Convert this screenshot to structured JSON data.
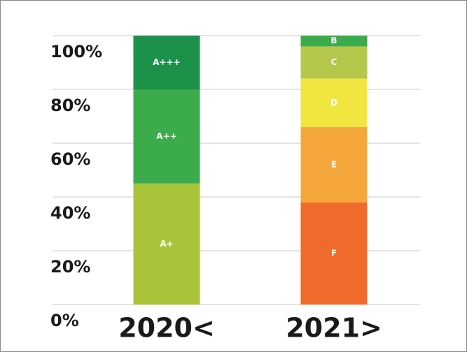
{
  "chart_data": {
    "type": "stacked-bar",
    "categories": [
      "2020<",
      "2021>"
    ],
    "series": [
      {
        "name": "A+",
        "color": "#a9c43b",
        "values": [
          45,
          null
        ]
      },
      {
        "name": "A++",
        "color": "#3cab4b",
        "values": [
          35,
          null
        ]
      },
      {
        "name": "A+++",
        "color": "#1b9149",
        "values": [
          20,
          null
        ]
      },
      {
        "name": "F",
        "color": "#f06a2b",
        "values": [
          null,
          38
        ]
      },
      {
        "name": "E",
        "color": "#f5a73b",
        "values": [
          null,
          28
        ]
      },
      {
        "name": "D",
        "color": "#f1e63f",
        "values": [
          null,
          18
        ]
      },
      {
        "name": "C",
        "color": "#b4c74b",
        "values": [
          null,
          12
        ]
      },
      {
        "name": "B",
        "color": "#3cab4b",
        "values": [
          null,
          4
        ]
      }
    ],
    "ylim": [
      0,
      100
    ],
    "yticks": [
      {
        "value": 0,
        "label": "0%"
      },
      {
        "value": 20,
        "label": "20%"
      },
      {
        "value": 40,
        "label": "40%"
      },
      {
        "value": 60,
        "label": "60%"
      },
      {
        "value": 80,
        "label": "80%"
      },
      {
        "value": 100,
        "label": "100%"
      }
    ],
    "grid": true
  }
}
